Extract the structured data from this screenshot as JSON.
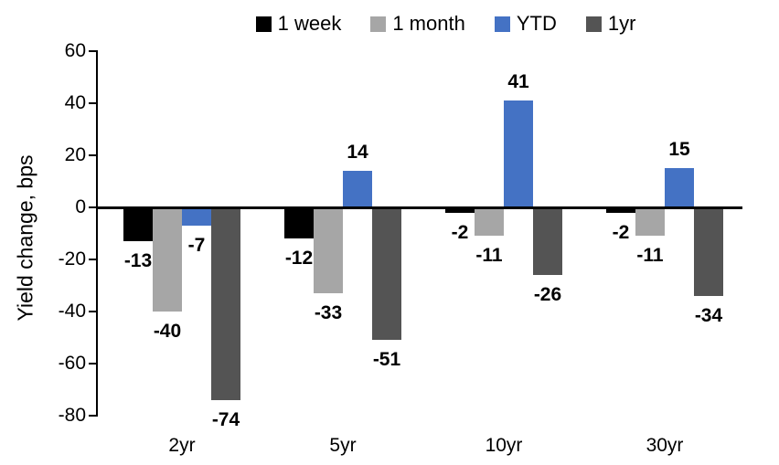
{
  "chart_data": {
    "type": "bar",
    "title": "",
    "ylabel": "Yield change, bps",
    "categories": [
      "2yr",
      "5yr",
      "10yr",
      "30yr"
    ],
    "series": [
      {
        "name": "1 week",
        "color": "#000000",
        "values": [
          -13,
          -12,
          -2,
          -2
        ]
      },
      {
        "name": "1 month",
        "color": "#A6A6A6",
        "values": [
          -40,
          -33,
          -11,
          -11
        ]
      },
      {
        "name": "YTD",
        "color": "#4472C4",
        "values": [
          -7,
          14,
          41,
          15
        ]
      },
      {
        "name": "1yr",
        "color": "#545454",
        "values": [
          -74,
          -51,
          -26,
          -34
        ]
      }
    ],
    "ylim": [
      -80,
      60
    ],
    "yticks": [
      60,
      40,
      20,
      0,
      -20,
      -40,
      -60,
      -80
    ],
    "legend_position": "top",
    "grid": false,
    "data_labels": true,
    "axis_color": "#000000",
    "background": "#FFFFFF"
  }
}
